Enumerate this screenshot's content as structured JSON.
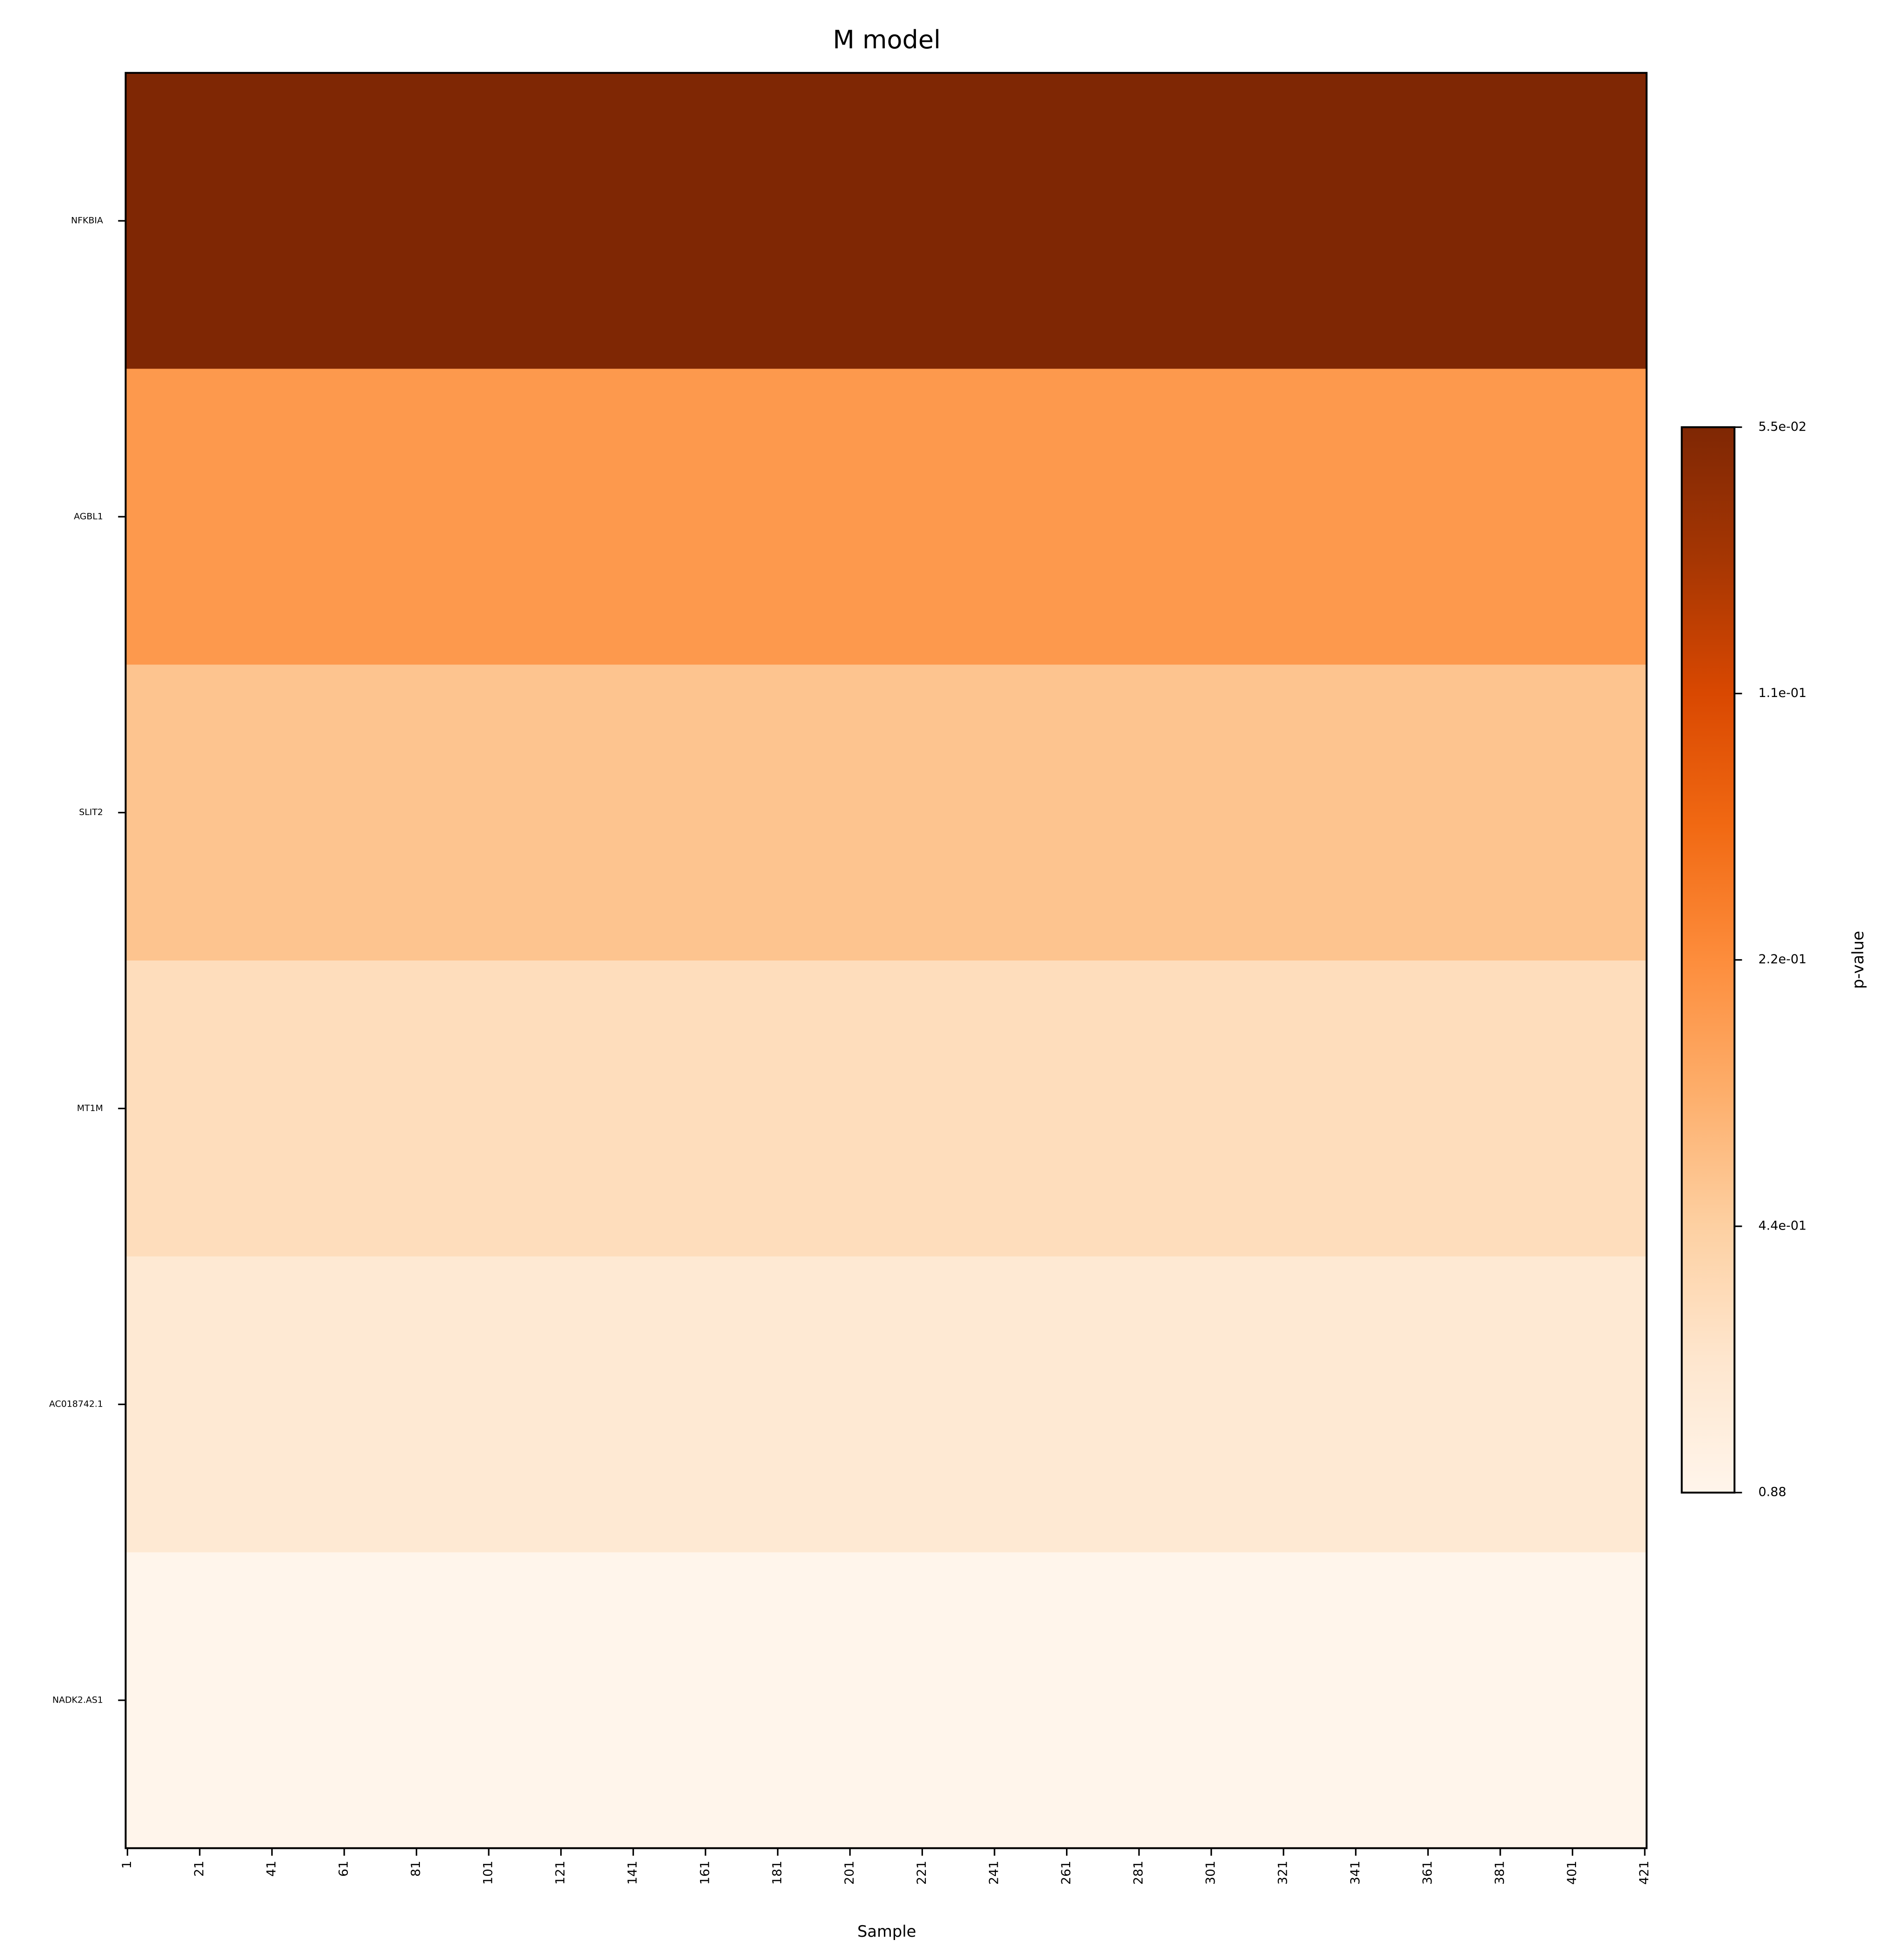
{
  "chart_data": {
    "type": "heatmap",
    "title": "M model",
    "xlabel": "Sample",
    "rows": [
      "NFKBIA",
      "AGBL1",
      "SLIT2",
      "MT1M",
      "AC018742.1",
      "NADK2.AS1"
    ],
    "values": [
      0.055,
      0.25,
      0.39,
      0.54,
      0.66,
      0.88
    ],
    "xlim": [
      0.5,
      421.5
    ],
    "xticks": [
      1,
      21,
      41,
      61,
      81,
      101,
      121,
      141,
      161,
      181,
      201,
      221,
      241,
      261,
      281,
      301,
      321,
      341,
      361,
      381,
      401,
      421
    ],
    "colorbar": {
      "label": "p-value",
      "scale": "log",
      "lim": [
        0.055,
        0.88
      ],
      "ticks": [
        {
          "value": 0.055,
          "label": "5.5e-02"
        },
        {
          "value": 0.11,
          "label": "1.1e-01"
        },
        {
          "value": 0.22,
          "label": "2.2e-01"
        },
        {
          "value": 0.44,
          "label": "4.4e-01"
        },
        0.88
      ],
      "colors": [
        "#7f2704",
        "#a63603",
        "#d94801",
        "#f16913",
        "#fd8d3c",
        "#fdae6b",
        "#fdd0a2",
        "#fee6ce",
        "#fff5eb"
      ]
    }
  }
}
